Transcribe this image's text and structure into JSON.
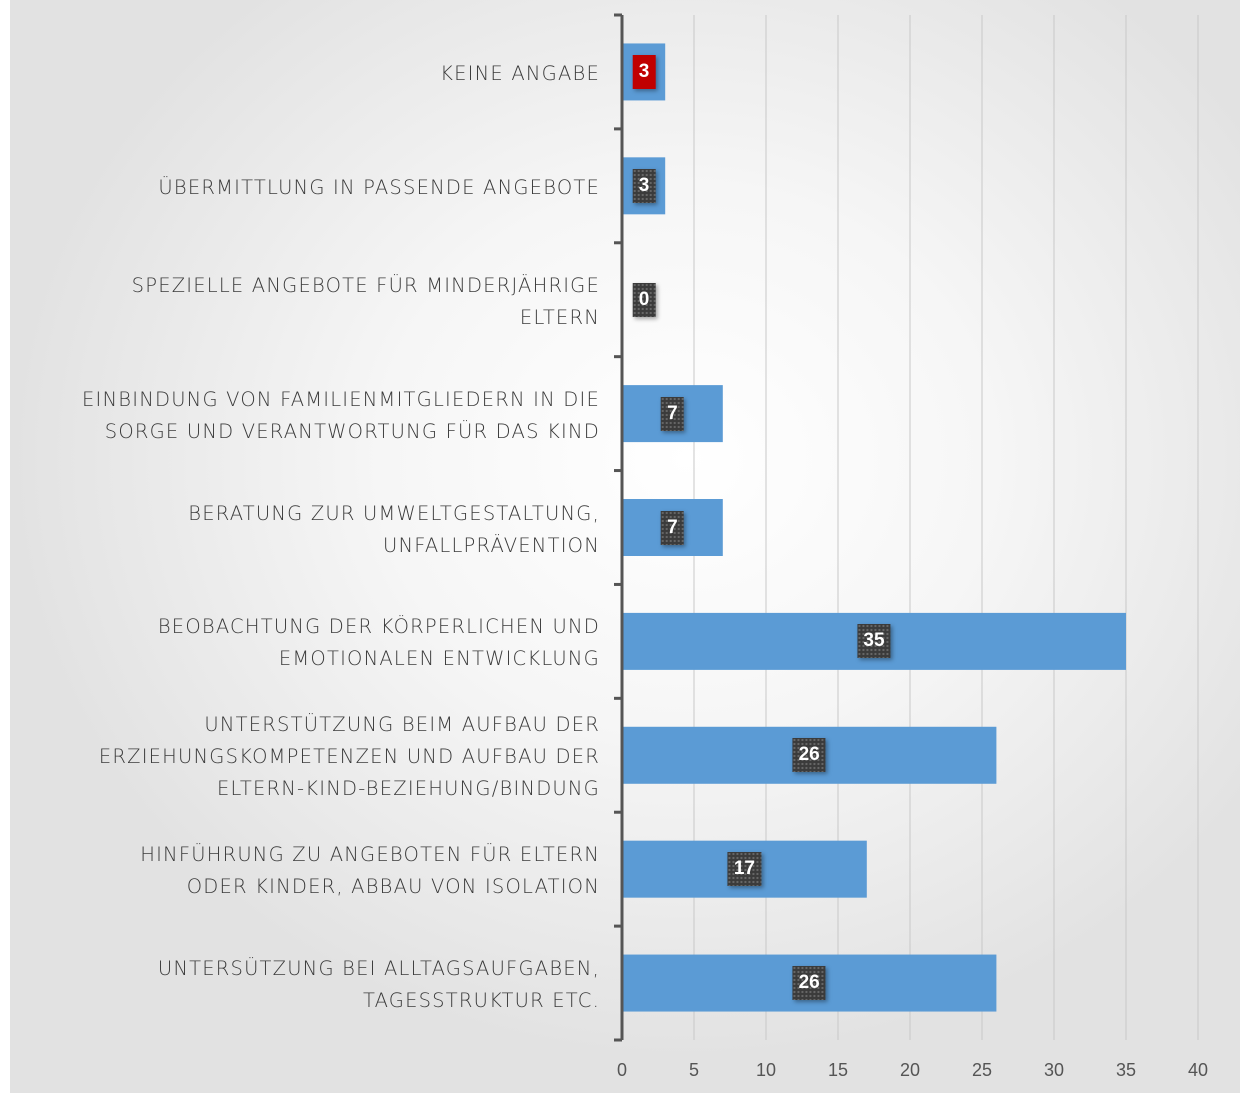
{
  "chart_data": {
    "type": "bar",
    "orientation": "horizontal",
    "title": "",
    "xlabel": "",
    "ylabel": "",
    "xlim": [
      0,
      40
    ],
    "x_ticks": [
      "0",
      "5",
      "10",
      "15",
      "20",
      "25",
      "30",
      "35",
      "40"
    ],
    "grid": "vertical",
    "categories": [
      "KEINE ANGABE",
      "ÜBERMITTLUNG IN PASSENDE ANGEBOTE",
      "SPEZIELLE ANGEBOTE FÜR MINDERJÄHRIGE ELTERN",
      "EINBINDUNG VON FAMILIENMITGLIEDERN IN DIE SORGE UND VERANTWORTUNG FÜR DAS KIND",
      "BERATUNG ZUR UMWELTGESTALTUNG, UNFALLPRÄVENTION",
      "BEOBACHTUNG DER KÖRPERLICHEN UND EMOTIONALEN ENTWICKLUNG",
      "UNTERSTÜTZUNG BEIM AUFBAU DER ERZIEHUNGSKOMPETENZEN UND AUFBAU DER ELTERN-KIND-BEZIEHUNG/BINDUNG",
      "HINFÜHRUNG ZU ANGEBOTEN FÜR ELTERN ODER KINDER, ABBAU VON ISOLATION",
      "UNTERSÜTZUNG BEI ALLTAGSAUFGABEN, TAGESSTRUKTUR ETC."
    ],
    "category_lines": [
      [
        "KEINE ANGABE"
      ],
      [
        "ÜBERMITTLUNG IN PASSENDE ANGEBOTE"
      ],
      [
        "SPEZIELLE ANGEBOTE FÜR MINDERJÄHRIGE",
        "ELTERN"
      ],
      [
        "EINBINDUNG VON FAMILIENMITGLIEDERN IN DIE",
        "SORGE UND VERANTWORTUNG FÜR DAS KIND"
      ],
      [
        "BERATUNG ZUR UMWELTGESTALTUNG,",
        "UNFALLPRÄVENTION"
      ],
      [
        "BEOBACHTUNG DER KÖRPERLICHEN UND",
        "EMOTIONALEN ENTWICKLUNG"
      ],
      [
        "UNTERSTÜTZUNG BEIM AUFBAU DER",
        "ERZIEHUNGSKOMPETENZEN UND AUFBAU DER",
        "ELTERN-KIND-BEZIEHUNG/BINDUNG"
      ],
      [
        "HINFÜHRUNG ZU ANGEBOTEN FÜR ELTERN",
        "ODER KINDER, ABBAU VON ISOLATION"
      ],
      [
        "UNTERSÜTZUNG BEI ALLTAGSAUFGABEN,",
        "TAGESSTRUKTUR ETC."
      ]
    ],
    "values": [
      3,
      3,
      0,
      7,
      7,
      35,
      26,
      17,
      26
    ],
    "data_labels": [
      "3",
      "3",
      "0",
      "7",
      "7",
      "35",
      "26",
      "17",
      "26"
    ],
    "highlighted_index": 0
  },
  "colors": {
    "bar": "#5b9bd5",
    "label_bg": "#3b3b3b",
    "highlight_label_bg": "#c00000",
    "axis": "#555555",
    "grid": "#c8c8c8"
  }
}
